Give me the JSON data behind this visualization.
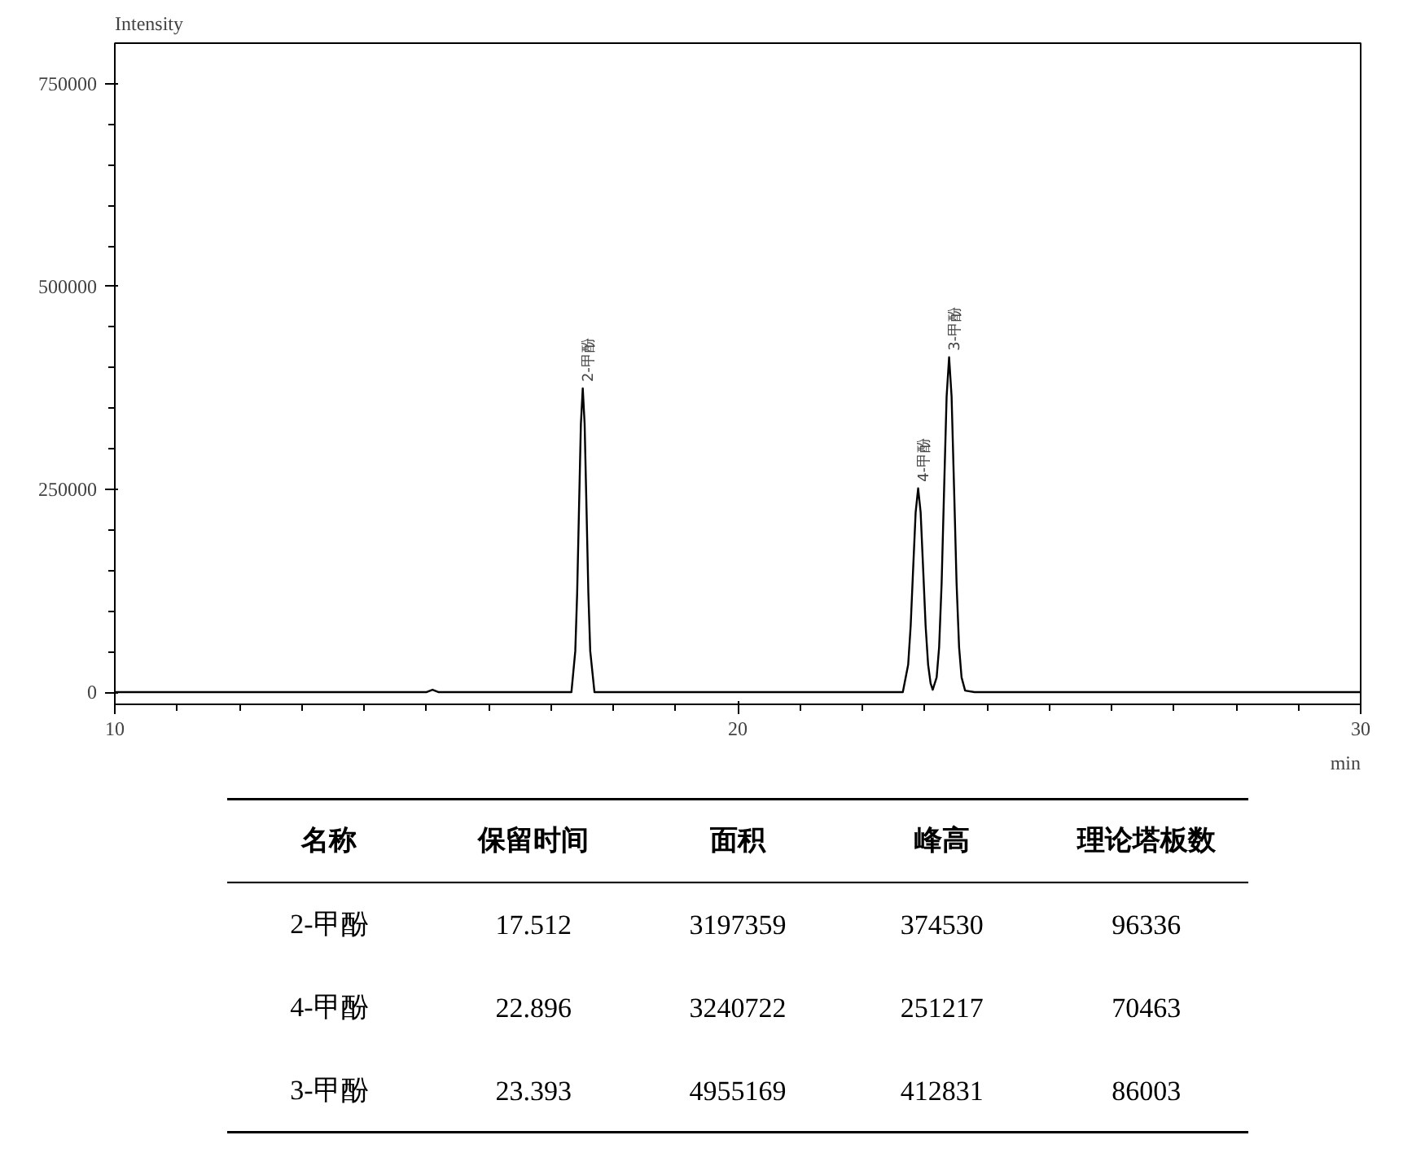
{
  "chart_data": [
    {
      "type": "line",
      "xlabel": "min",
      "ylabel": "Intensity",
      "x": [
        10,
        15.0,
        15.1,
        15.2,
        17.33,
        17.392,
        17.422,
        17.452,
        17.482,
        17.512,
        17.542,
        17.572,
        17.602,
        17.632,
        17.7,
        22.65,
        22.736,
        22.776,
        22.816,
        22.856,
        22.896,
        22.936,
        22.976,
        23.016,
        23.056,
        23.096,
        23.13,
        23.193,
        23.233,
        23.273,
        23.313,
        23.353,
        23.393,
        23.433,
        23.473,
        23.513,
        23.553,
        23.593,
        23.65,
        23.8,
        30
      ],
      "values": [
        0,
        0,
        3000,
        0,
        0,
        50600,
        121700,
        227000,
        330500,
        374530,
        330500,
        227000,
        121700,
        50600,
        0,
        0,
        33900,
        81600,
        152500,
        221700,
        251217,
        221700,
        152500,
        81600,
        33900,
        11000,
        3000,
        18200,
        55700,
        134200,
        250700,
        364300,
        412831,
        364300,
        250700,
        134200,
        55700,
        18200,
        2000,
        0,
        0
      ],
      "color": "#000000",
      "xlim": [
        10,
        30
      ],
      "ylim": [
        -15000,
        800000
      ],
      "xticks": [
        10,
        20,
        30
      ],
      "yticks": [
        0,
        250000,
        500000,
        750000
      ],
      "grid": false,
      "annotations": [
        {
          "text": "2-甲酚",
          "x": 17.512,
          "y": 374530
        },
        {
          "text": "4-甲酚",
          "x": 22.896,
          "y": 251217
        },
        {
          "text": "3-甲酚",
          "x": 23.393,
          "y": 412831
        }
      ]
    },
    {
      "type": "other",
      "categories": [
        "名称",
        "保留时间",
        "面积",
        "峰高",
        "理论塔板数"
      ],
      "annotations": [
        "2-甲酚",
        "17.512",
        "3197359",
        "374530",
        "96336",
        "4-甲酚",
        "22.896",
        "3240722",
        "251217",
        "70463",
        "3-甲酚",
        "23.393",
        "4955169",
        "412831",
        "86003"
      ]
    }
  ]
}
